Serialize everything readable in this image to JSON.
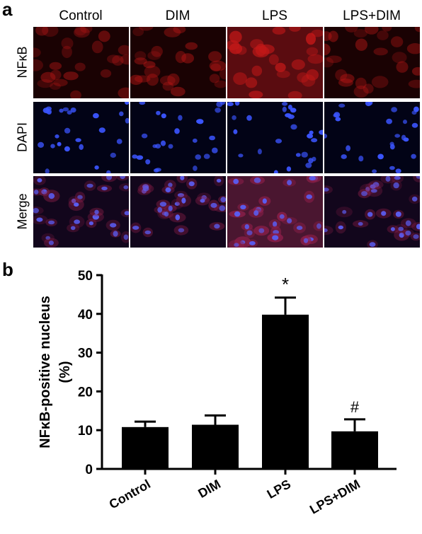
{
  "panel_a": {
    "letter": "a",
    "columns": [
      "Control",
      "DIM",
      "LPS",
      "LPS+DIM"
    ],
    "rows": [
      "NFκB",
      "DAPI",
      "Merge"
    ],
    "stain_colors": {
      "NFκB": "#d81e1e",
      "DAPI": "#2b3fff",
      "Merge": "#b8306e"
    }
  },
  "panel_b": {
    "letter": "b"
  },
  "chart_data": {
    "type": "bar",
    "categories": [
      "Control",
      "DIM",
      "LPS",
      "LPS+DIM"
    ],
    "values": [
      10.8,
      11.4,
      39.8,
      9.7
    ],
    "errors": [
      1.4,
      2.4,
      4.4,
      3.1
    ],
    "annotations": [
      "",
      "",
      "*",
      "#"
    ],
    "xlabel": "",
    "ylabel": "NFκB-positive nucleus (%)",
    "ylabel_lines": [
      "NFκB-positive nucleus",
      "(%)"
    ],
    "ylim": [
      0,
      50
    ],
    "yticks": [
      0,
      10,
      20,
      30,
      40,
      50
    ],
    "bar_color": "#000000",
    "grid": false,
    "legend": "none"
  }
}
